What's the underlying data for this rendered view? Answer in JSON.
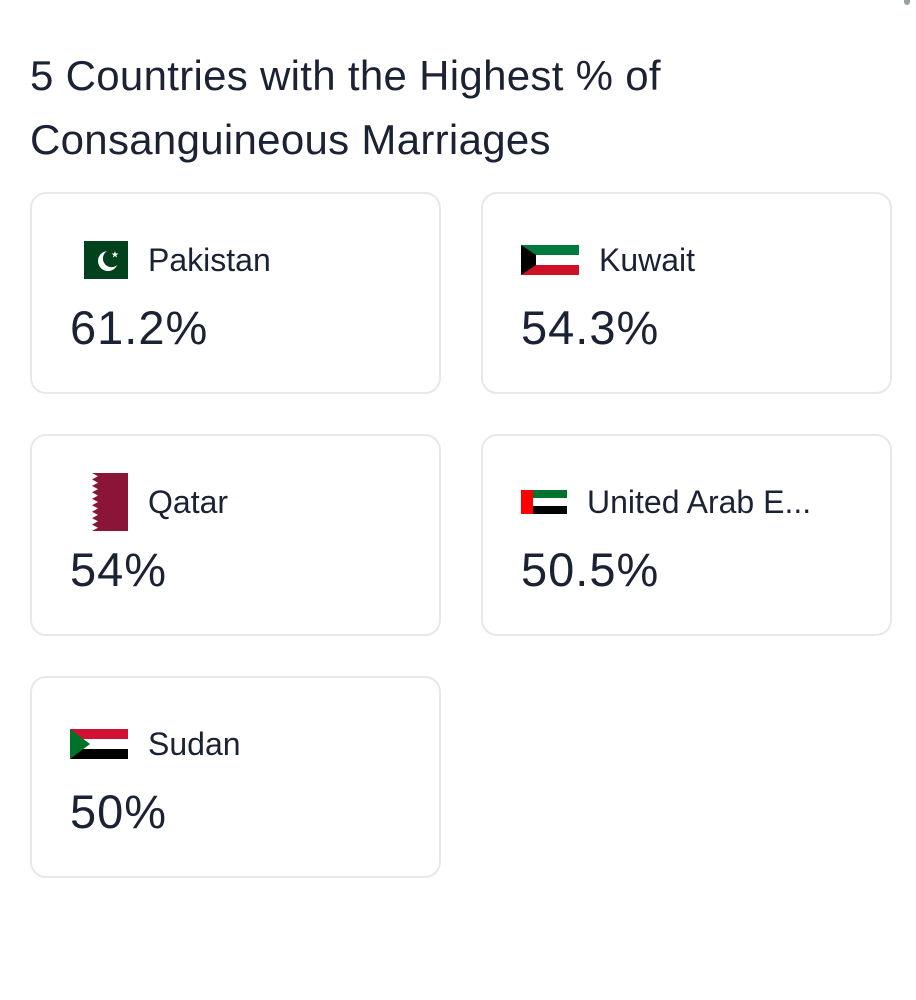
{
  "title": "5 Countries with the Highest % of Consanguineous Marriages",
  "cards": [
    {
      "country": "Pakistan",
      "value": "61.2%",
      "flag": "pakistan-flag-icon",
      "colors": {
        "green": "#01411C",
        "white": "#FFFFFF"
      }
    },
    {
      "country": "Kuwait",
      "value": "54.3%",
      "flag": "kuwait-flag-icon",
      "colors": {
        "green": "#007A3D",
        "white": "#FFFFFF",
        "red": "#CE1126",
        "black": "#000000"
      }
    },
    {
      "country": "Qatar",
      "value": "54%",
      "flag": "qatar-flag-icon",
      "colors": {
        "maroon": "#8A1538",
        "white": "#FFFFFF"
      }
    },
    {
      "country": "United Arab E...",
      "value": "50.5%",
      "flag": "uae-flag-icon",
      "colors": {
        "red": "#FF0000",
        "green": "#00732F",
        "white": "#FFFFFF",
        "black": "#000000"
      }
    },
    {
      "country": "Sudan",
      "value": "50%",
      "flag": "sudan-flag-icon",
      "colors": {
        "red": "#D21034",
        "white": "#FFFFFF",
        "black": "#000000",
        "green": "#007229"
      }
    }
  ]
}
